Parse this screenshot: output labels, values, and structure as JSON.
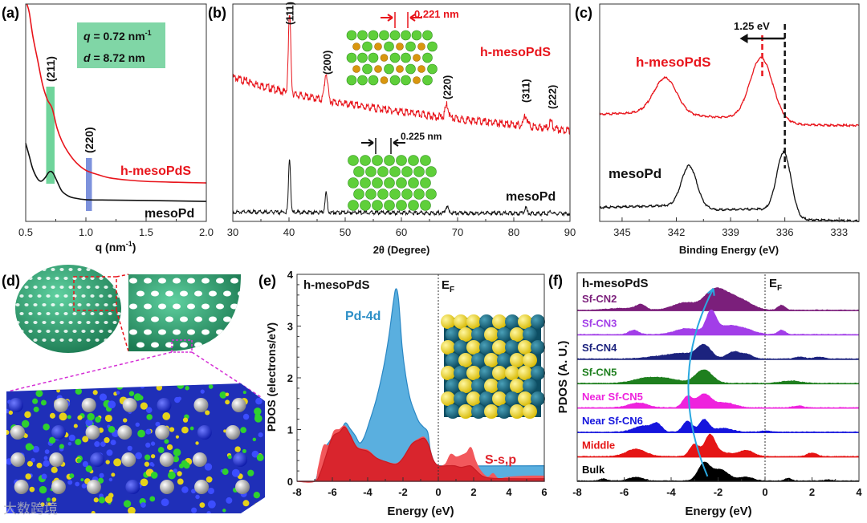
{
  "figure": {
    "watermark": "大数跨境"
  },
  "chart_data": [
    {
      "panel_label": "(a)",
      "type": "line",
      "xlabel": "q (nm",
      "xlabel_sup": "-1",
      "xlabel_end": ")",
      "xlim": [
        0.5,
        2.0
      ],
      "ylim": [
        0,
        100
      ],
      "xticks": [
        0.5,
        1.0,
        1.5,
        2.0
      ],
      "xtick_labels": [
        "0.5",
        "1.0",
        "1.5",
        "2.0"
      ],
      "info_box": {
        "q_sym": "q",
        "q_text": " = 0.72 nm",
        "q_sup": "-1",
        "d_sym": "d",
        "d_text": " = 8.72 nm",
        "color": "#80d6a6"
      },
      "bands": [
        {
          "label": "(211)",
          "q": [
            0.67,
            0.74
          ],
          "color": "#5fcf90"
        },
        {
          "label": "(220)",
          "q": [
            1.0,
            1.05
          ],
          "color": "#6f86d8"
        }
      ],
      "series": [
        {
          "name": "h-mesoPdS",
          "color": "#e8141b",
          "x": [
            0.51,
            0.53,
            0.56,
            0.6,
            0.64,
            0.68,
            0.72,
            0.76,
            0.8,
            0.85,
            0.92,
            1.0,
            1.1,
            1.2,
            1.35,
            1.5,
            1.75,
            2.0
          ],
          "y": [
            100,
            96,
            85,
            74,
            63,
            56,
            52,
            43,
            37,
            32,
            27,
            23.5,
            21.5,
            20,
            19,
            18.4,
            18,
            17.7
          ]
        },
        {
          "name": "mesoPd",
          "color": "#111111",
          "x": [
            0.5,
            0.53,
            0.56,
            0.6,
            0.63,
            0.66,
            0.69,
            0.71,
            0.73,
            0.76,
            0.8,
            0.85,
            0.9,
            1.0,
            1.2,
            1.5,
            2.0
          ],
          "y": [
            36,
            30,
            24,
            19.5,
            18.5,
            20,
            22.5,
            23,
            22,
            18.5,
            14,
            11.8,
            10.8,
            10,
            9.8,
            9.6,
            9.2
          ]
        }
      ]
    },
    {
      "panel_label": "(b)",
      "type": "line",
      "xlabel": "2θ (Degree)",
      "xlim": [
        30,
        90
      ],
      "ylim": [
        0,
        271
      ],
      "xticks": [
        30,
        40,
        50,
        60,
        70,
        80,
        90
      ],
      "xtick_labels": [
        "30",
        "40",
        "50",
        "60",
        "70",
        "80",
        "90"
      ],
      "peak_labels": [
        {
          "label": "(111)",
          "x": 40.1,
          "y": 245
        },
        {
          "label": "(200)",
          "x": 46.7,
          "y": 183
        },
        {
          "label": "(220)",
          "x": 68.1,
          "y": 152
        },
        {
          "label": "(311)",
          "x": 82.1,
          "y": 148
        },
        {
          "label": "(222)",
          "x": 86.8,
          "y": 140
        }
      ],
      "insets": {
        "h_spacing": "0.221 nm",
        "h_spacing_color": "#e8141b",
        "meso_spacing": "0.225 nm"
      },
      "series": [
        {
          "name": "h-mesoPdS",
          "color": "#e8141b",
          "baseline": [
            [
              30,
              182
            ],
            [
              35,
              172
            ],
            [
              40,
              162
            ],
            [
              50,
              149
            ],
            [
              60,
              139
            ],
            [
              70,
              130
            ],
            [
              80,
              123
            ],
            [
              90,
              116
            ]
          ],
          "peaks": [
            [
              40.1,
              98,
              0.22
            ],
            [
              46.6,
              34,
              0.28
            ],
            [
              68.1,
              16,
              0.3
            ],
            [
              82.1,
              14,
              0.3
            ],
            [
              86.6,
              8,
              0.3
            ]
          ]
        },
        {
          "name": "mesoPd",
          "color": "#111111",
          "baseline": [
            [
              30,
              13
            ],
            [
              60,
              12
            ],
            [
              90,
              11
            ]
          ],
          "peaks": [
            [
              40.1,
              68,
              0.18
            ],
            [
              46.6,
              24,
              0.2
            ],
            [
              68.1,
              9,
              0.22
            ],
            [
              82.1,
              7,
              0.22
            ],
            [
              86.6,
              3,
              0.22
            ]
          ]
        }
      ]
    },
    {
      "panel_label": "(c)",
      "type": "line",
      "xlabel": "Binding Energy (eV)",
      "xlim": [
        346.24,
        331.9
      ],
      "ylim": [
        0,
        271
      ],
      "xticks": [
        345,
        342,
        339,
        336,
        333
      ],
      "xtick_labels": [
        "345",
        "342",
        "339",
        "336",
        "333"
      ],
      "shift_label": "1.25 eV",
      "reference_lines": [
        {
          "x": 336.0,
          "color": "#111111"
        },
        {
          "x": 337.25,
          "color": "#e8141b"
        }
      ],
      "series": [
        {
          "name": "h-mesoPdS",
          "color": "#e8141b",
          "baseline": [
            [
              346.24,
              134
            ],
            [
              343.5,
              137
            ],
            [
              340,
              131
            ],
            [
              338,
              129
            ],
            [
              336.2,
              125
            ],
            [
              335,
              121
            ],
            [
              331.9,
              120
            ]
          ],
          "peaks": [
            [
              342.6,
              44,
              0.62
            ],
            [
              337.3,
              77,
              0.62
            ]
          ]
        },
        {
          "name": "mesoPd",
          "color": "#111111",
          "baseline": [
            [
              346.24,
              18
            ],
            [
              343,
              20
            ],
            [
              341,
              20
            ],
            [
              339.8,
              15
            ],
            [
              337.5,
              16
            ],
            [
              336.2,
              12
            ],
            [
              335.2,
              3
            ],
            [
              331.9,
              1
            ]
          ],
          "peaks": [
            [
              341.3,
              50,
              0.42
            ],
            [
              336.05,
              76,
              0.4
            ]
          ]
        }
      ]
    },
    {
      "panel_label": "(d)",
      "type": "other"
    },
    {
      "panel_label": "(e)",
      "type": "area",
      "title": "h-mesoPdS",
      "xlabel": "Energy (eV)",
      "ylabel": "PDOS (electrons/eV)",
      "xlim": [
        -8,
        6
      ],
      "ylim": [
        0,
        4
      ],
      "xticks": [
        -8,
        -6,
        -4,
        -2,
        0,
        2,
        4,
        6
      ],
      "xtick_labels": [
        "-8",
        "-6",
        "-4",
        "-2",
        "0",
        "2",
        "4",
        "6"
      ],
      "yticks": [
        0,
        1,
        2,
        3,
        4
      ],
      "ytick_labels": [
        "0",
        "1",
        "2",
        "3",
        "4"
      ],
      "fermi_label": "E",
      "fermi_sub": "F",
      "series": [
        {
          "name": "Pd-4d",
          "color": "#2a87c4",
          "fill": "#5aafdf",
          "x": [
            -8,
            -7.05,
            -6.8,
            -6.5,
            -6.2,
            -5.8,
            -5.5,
            -5.25,
            -5.0,
            -4.7,
            -4.45,
            -4.2,
            -3.9,
            -3.5,
            -3.1,
            -2.8,
            -2.55,
            -2.4,
            -2.25,
            -2.05,
            -1.85,
            -1.6,
            -1.35,
            -1.1,
            -0.85,
            -0.6,
            -0.45,
            -0.2,
            0,
            6
          ],
          "y": [
            0,
            0,
            0.2,
            0.6,
            0.75,
            0.95,
            1.0,
            1.13,
            1.02,
            0.88,
            0.74,
            0.85,
            1.15,
            1.6,
            2.2,
            2.8,
            3.45,
            3.72,
            3.5,
            2.6,
            2.05,
            1.6,
            1.35,
            1.15,
            1.05,
            0.95,
            0.6,
            0.35,
            0.3,
            0.3
          ]
        },
        {
          "name": "S-s,p",
          "color": "#f2585c",
          "fill": "#f2585c",
          "x": [
            -8,
            -7.0,
            -6.8,
            -6.5,
            -6.2,
            -5.9,
            -5.6,
            -5.3,
            -5.0,
            -4.6,
            -4.0,
            -3.5,
            -3.0,
            -2.4,
            -2.0,
            -1.5,
            -1.1,
            -0.8,
            -0.55,
            -0.3,
            0,
            0.4,
            0.7,
            1.0,
            1.3,
            1.6,
            1.85,
            2.1,
            2.4,
            2.8,
            3.1,
            3.4,
            4,
            5,
            6
          ],
          "y": [
            0,
            0,
            0.25,
            0.68,
            0.7,
            0.97,
            1.0,
            1.07,
            0.9,
            0.66,
            0.6,
            0.45,
            0.38,
            0.34,
            0.45,
            0.72,
            0.82,
            0.85,
            0.7,
            0.42,
            0.3,
            0.33,
            0.52,
            0.47,
            0.5,
            0.55,
            0.65,
            0.4,
            0.2,
            0.08,
            0.15,
            0.05,
            0.08,
            0.1,
            0.1
          ]
        },
        {
          "name": "S-s,p-dark",
          "color": "#c81c24",
          "fill": "#d9252d",
          "x": [
            -8,
            -7.0,
            -6.7,
            -6.4,
            -6.0,
            -5.6,
            -5.3,
            -5.0,
            -4.6,
            -4.0,
            -3.5,
            -3.0,
            -2.4,
            -2.0,
            -1.5,
            -1.1,
            -0.8,
            -0.55,
            -0.3,
            0,
            0.5,
            0.9,
            1.3,
            1.8,
            2.1,
            2.5,
            3.0,
            4,
            6
          ],
          "y": [
            0,
            0,
            0.15,
            0.45,
            0.85,
            0.95,
            1.05,
            0.9,
            0.65,
            0.58,
            0.45,
            0.38,
            0.33,
            0.45,
            0.72,
            0.8,
            0.83,
            0.7,
            0.42,
            0.3,
            0.3,
            0.3,
            0.27,
            0.3,
            0.22,
            0.1,
            0.06,
            0.05,
            0.05
          ]
        }
      ]
    },
    {
      "panel_label": "(f)",
      "type": "area",
      "title": "h-mesoPdS",
      "xlabel": "Energy (eV)",
      "ylabel": "PDOS (A. U.)",
      "xlim": [
        -8,
        4
      ],
      "ylim": [
        0,
        8.55
      ],
      "xticks": [
        -8,
        -6,
        -4,
        -2,
        0,
        2,
        4
      ],
      "xtick_labels": [
        "-8",
        "-6",
        "-4",
        "-2",
        "0",
        "2",
        "4"
      ],
      "fermi_label": "E",
      "fermi_sub": "F",
      "arrow_color": "#29a8e0",
      "series": [
        {
          "name": "Sf-CN2",
          "color": "#7b1f7b",
          "offset": 7,
          "peaks": [
            [
              -6.0,
              0.08,
              0.6
            ],
            [
              -5.3,
              0.2,
              0.2
            ],
            [
              -3.4,
              0.3,
              0.5
            ],
            [
              -2.2,
              0.72,
              0.4
            ],
            [
              -1.5,
              0.5,
              0.45
            ],
            [
              -0.8,
              0.22,
              0.4
            ],
            [
              0.7,
              0.2,
              0.15
            ]
          ]
        },
        {
          "name": "Sf-CN3",
          "color": "#a23ee8",
          "offset": 6,
          "peaks": [
            [
              -5.6,
              0.18,
              0.2
            ],
            [
              -3.3,
              0.25,
              0.5
            ],
            [
              -2.3,
              0.85,
              0.2
            ],
            [
              -1.6,
              0.35,
              0.5
            ],
            [
              -0.8,
              0.15,
              0.4
            ],
            [
              0.7,
              0.18,
              0.15
            ]
          ]
        },
        {
          "name": "Sf-CN4",
          "color": "#1c237e",
          "offset": 5,
          "peaks": [
            [
              -4.5,
              0.1,
              0.6
            ],
            [
              -3.5,
              0.2,
              0.5
            ],
            [
              -2.6,
              0.55,
              0.3
            ],
            [
              -1.3,
              0.3,
              0.3
            ],
            [
              -0.7,
              0.15,
              0.2
            ],
            [
              1.5,
              0.08,
              0.2
            ],
            [
              2.3,
              0.08,
              0.2
            ]
          ]
        },
        {
          "name": "Sf-CN5",
          "color": "#1e7f1e",
          "offset": 4,
          "peaks": [
            [
              -5.2,
              0.15,
              0.5
            ],
            [
              -4.3,
              0.2,
              0.6
            ],
            [
              -2.6,
              0.55,
              0.35
            ],
            [
              1.1,
              0.1,
              0.4
            ]
          ]
        },
        {
          "name": "Near Sf-CN5",
          "color": "#ee22dd",
          "offset": 3,
          "peaks": [
            [
              -5.4,
              0.2,
              0.4
            ],
            [
              -3.3,
              0.45,
              0.2
            ],
            [
              -2.6,
              0.55,
              0.3
            ],
            [
              -1.7,
              0.2,
              0.4
            ],
            [
              1.4,
              0.08,
              0.2
            ]
          ]
        },
        {
          "name": "Near Sf-CN6",
          "color": "#1515dd",
          "offset": 2,
          "peaks": [
            [
              -5.2,
              0.25,
              0.4
            ],
            [
              -4.6,
              0.3,
              0.2
            ],
            [
              -3.3,
              0.45,
              0.2
            ],
            [
              -2.6,
              0.5,
              0.2
            ],
            [
              -1.8,
              0.15,
              0.4
            ],
            [
              0,
              0.05,
              0.2
            ]
          ]
        },
        {
          "name": "Middle",
          "color": "#e51515",
          "offset": 1,
          "peaks": [
            [
              -5.5,
              0.3,
              0.4
            ],
            [
              -3.0,
              0.5,
              0.2
            ],
            [
              -2.35,
              0.85,
              0.22
            ],
            [
              -1.8,
              0.15,
              0.4
            ],
            [
              -0.8,
              0.25,
              0.3
            ],
            [
              2.0,
              0.15,
              0.2
            ]
          ]
        },
        {
          "name": "Bulk",
          "color": "#000000",
          "offset": 0,
          "peaks": [
            [
              -6.9,
              0.08,
              0.15
            ],
            [
              -5.5,
              0.15,
              0.3
            ],
            [
              -2.6,
              0.7,
              0.25
            ],
            [
              -1.9,
              0.45,
              0.35
            ],
            [
              -0.8,
              0.15,
              0.3
            ],
            [
              1.0,
              0.1,
              0.15
            ],
            [
              2.7,
              0.05,
              0.15
            ]
          ]
        }
      ]
    }
  ]
}
